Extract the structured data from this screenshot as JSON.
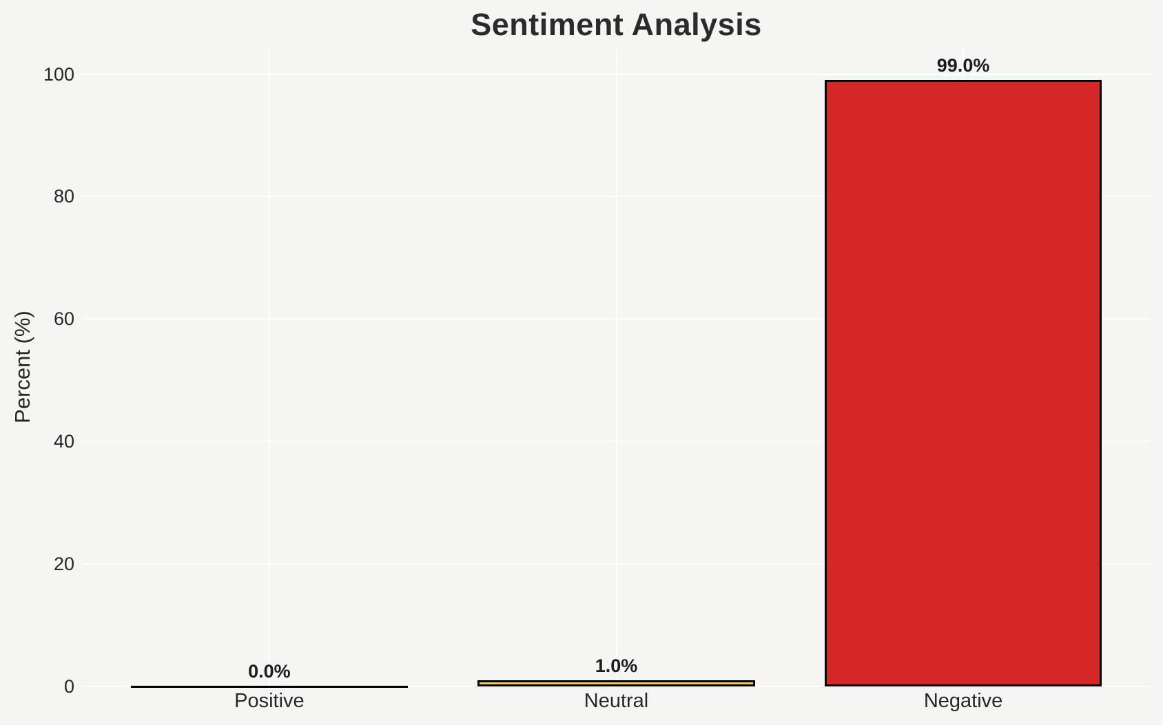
{
  "chart_data": {
    "type": "bar",
    "title": "Sentiment Analysis",
    "xlabel": "",
    "ylabel": "Percent (%)",
    "categories": [
      "Positive",
      "Neutral",
      "Negative"
    ],
    "values": [
      0.0,
      1.0,
      99.0
    ],
    "value_labels": [
      "0.0%",
      "1.0%",
      "99.0%"
    ],
    "yticks": [
      0,
      20,
      40,
      60,
      80,
      100
    ],
    "ytick_labels": [
      "0",
      "20",
      "40",
      "60",
      "80",
      "100"
    ],
    "ylim": [
      0,
      104
    ],
    "grid": true,
    "legend": "none",
    "colors": {
      "bar_fills": [
        null,
        "#F5CE31",
        "#D62728"
      ],
      "bar_edge": "#000000",
      "background": "#f5f5f4",
      "gridline": "#ffffff",
      "text": "#262626"
    }
  }
}
